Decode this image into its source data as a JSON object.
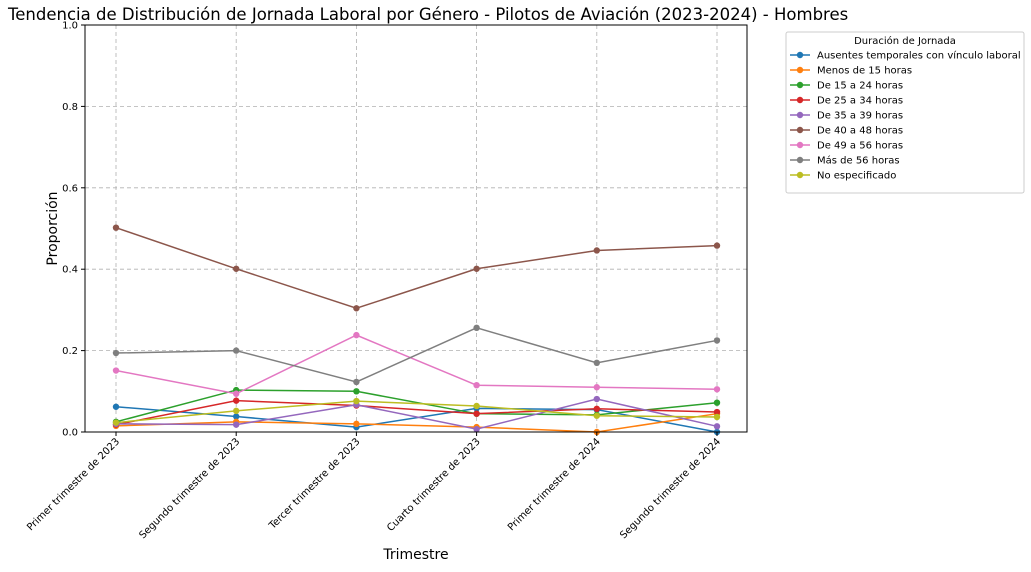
{
  "chart_data": {
    "type": "line",
    "title": "Tendencia de Distribución de Jornada Laboral por Género - Pilotos de Aviación (2023-2024) - Hombres",
    "xlabel": "Trimestre",
    "ylabel": "Proporción",
    "ylim": [
      0,
      1
    ],
    "yticks": [
      0.0,
      0.2,
      0.4,
      0.6,
      0.8,
      1.0
    ],
    "ytick_labels": [
      "0.0",
      "0.2",
      "0.4",
      "0.6",
      "0.8",
      "1.0"
    ],
    "grid": true,
    "legend_title": "Duración de Jornada",
    "legend_position": "outside-right",
    "categories": [
      "Primer trimestre de 2023",
      "Segundo trimestre de 2023",
      "Tercer trimestre de 2023",
      "Cuarto trimestre de 2023",
      "Primer trimestre de 2024",
      "Segundo trimestre de 2024"
    ],
    "series": [
      {
        "name": "Ausentes temporales con vínculo laboral",
        "color": "#1f77b4",
        "values": [
          0.062,
          0.038,
          0.012,
          0.058,
          0.055,
          0.0
        ]
      },
      {
        "name": "Menos de 15 horas",
        "color": "#ff7f0e",
        "values": [
          0.015,
          0.025,
          0.02,
          0.012,
          0.0,
          0.045
        ]
      },
      {
        "name": "De 15 a 24 horas",
        "color": "#2ca02c",
        "values": [
          0.025,
          0.103,
          0.1,
          0.045,
          0.042,
          0.072
        ]
      },
      {
        "name": "De 25 a 34 horas",
        "color": "#d62728",
        "values": [
          0.018,
          0.077,
          0.065,
          0.045,
          0.057,
          0.049
        ]
      },
      {
        "name": "De 35 a 39 horas",
        "color": "#9467bd",
        "values": [
          0.02,
          0.018,
          0.067,
          0.007,
          0.081,
          0.014
        ]
      },
      {
        "name": "De 40 a 48 horas",
        "color": "#8c564b",
        "values": [
          0.502,
          0.401,
          0.304,
          0.401,
          0.446,
          0.458
        ]
      },
      {
        "name": "De 49 a 56 horas",
        "color": "#e377c2",
        "values": [
          0.151,
          0.094,
          0.238,
          0.115,
          0.11,
          0.105
        ]
      },
      {
        "name": "Más de 56 horas",
        "color": "#7f7f7f",
        "values": [
          0.194,
          0.2,
          0.123,
          0.256,
          0.17,
          0.225
        ]
      },
      {
        "name": "No especificado",
        "color": "#bcbd22",
        "values": [
          0.023,
          0.052,
          0.076,
          0.064,
          0.04,
          0.037
        ]
      }
    ]
  }
}
